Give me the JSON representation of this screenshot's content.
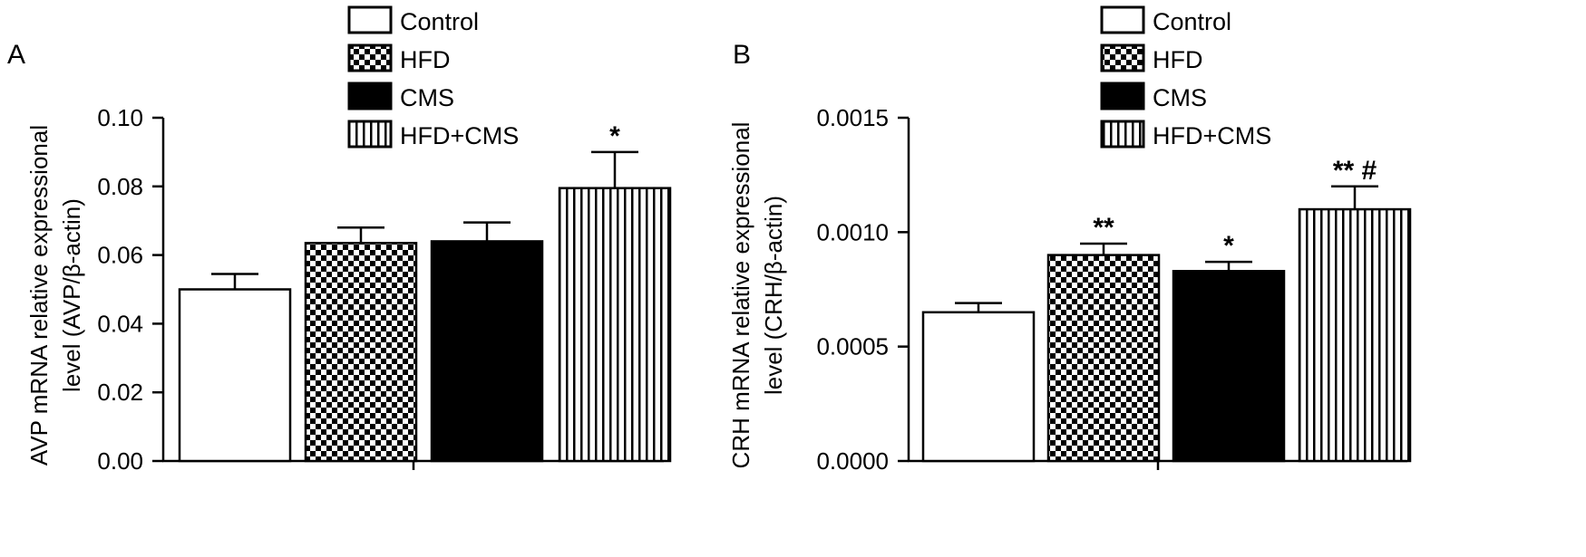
{
  "chart_data": [
    {
      "type": "bar",
      "panel_label": "A",
      "ylabel_lines": [
        "AVP mRNA relative expressional",
        "level (AVP/β-actin)"
      ],
      "categories": [
        "Control",
        "HFD",
        "CMS",
        "HFD+CMS"
      ],
      "values": [
        0.05,
        0.0635,
        0.064,
        0.0795
      ],
      "errors": [
        0.0045,
        0.0045,
        0.0055,
        0.0105
      ],
      "annotations": [
        "",
        "",
        "",
        "*"
      ],
      "ylim": [
        0,
        0.1
      ],
      "yticks": [
        "0.00",
        "0.02",
        "0.04",
        "0.06",
        "0.08",
        "0.10"
      ],
      "ytick_values": [
        0,
        0.02,
        0.04,
        0.06,
        0.08,
        0.1
      ],
      "legend": [
        "Control",
        "HFD",
        "CMS",
        "HFD+CMS"
      ],
      "legend_position": "top-right",
      "grid": false
    },
    {
      "type": "bar",
      "panel_label": "B",
      "ylabel_lines": [
        "CRH mRNA relative expressional",
        "level (CRH/β-actin)"
      ],
      "categories": [
        "Control",
        "HFD",
        "CMS",
        "HFD+CMS"
      ],
      "values": [
        0.00065,
        0.0009,
        0.00083,
        0.0011
      ],
      "errors": [
        4e-05,
        5e-05,
        4e-05,
        0.0001
      ],
      "annotations": [
        "",
        "**",
        "*",
        "** #"
      ],
      "ylim": [
        0,
        0.0015
      ],
      "yticks": [
        "0.0000",
        "0.0005",
        "0.0010",
        "0.0015"
      ],
      "ytick_values": [
        0,
        0.0005,
        0.001,
        0.0015
      ],
      "legend": [
        "Control",
        "HFD",
        "CMS",
        "HFD+CMS"
      ],
      "legend_position": "top-right",
      "grid": false
    }
  ],
  "colors": {
    "ink": "#000000",
    "background": "#ffffff"
  },
  "fills": [
    "open",
    "checker",
    "solid",
    "vertical-stripes"
  ]
}
